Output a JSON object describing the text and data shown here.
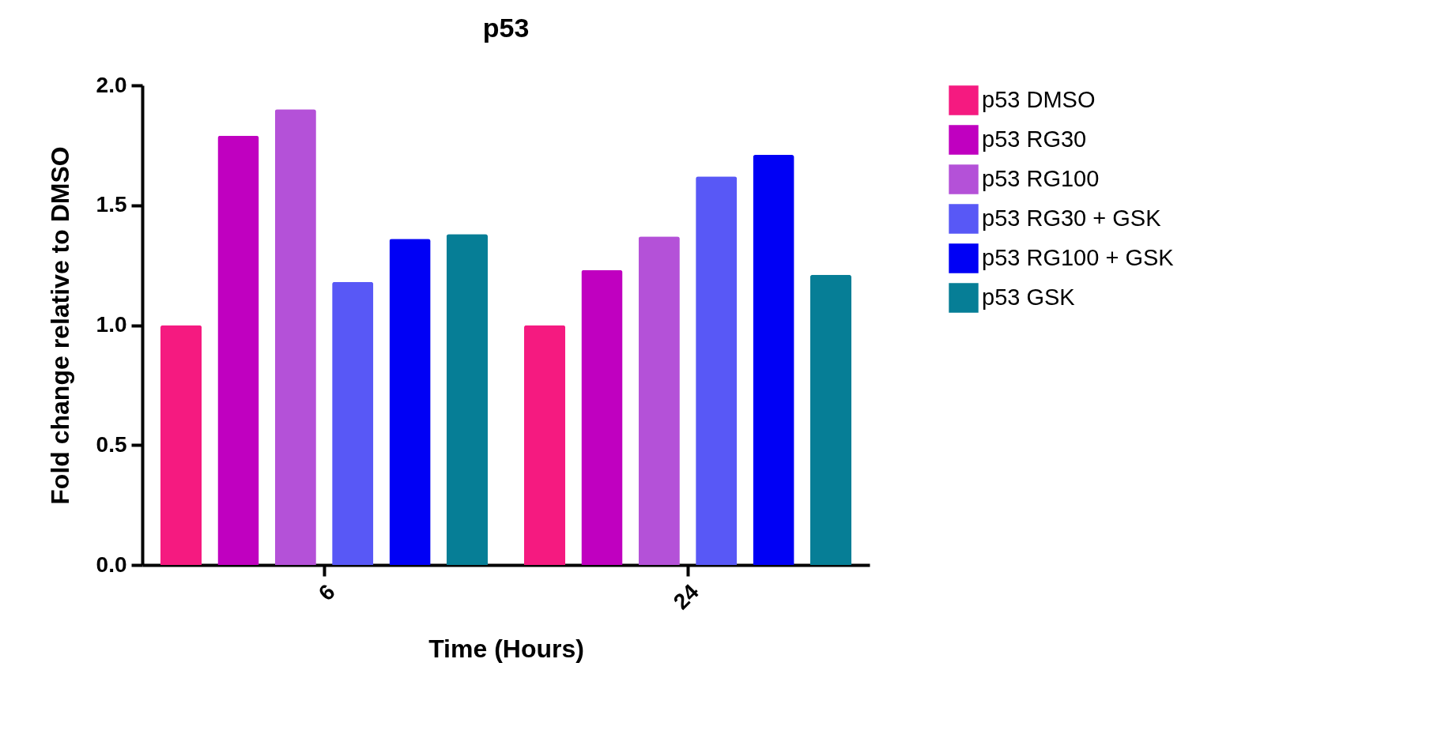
{
  "chart_data": {
    "type": "bar",
    "title": "p53",
    "xlabel": "Time (Hours)",
    "ylabel": "Fold change relative to DMSO",
    "categories": [
      "6",
      "24"
    ],
    "series": [
      {
        "name": "p53 DMSO",
        "color": "#f51a80",
        "values": [
          1.0,
          1.0
        ]
      },
      {
        "name": "p53 RG30",
        "color": "#c000c0",
        "values": [
          1.79,
          1.23
        ]
      },
      {
        "name": "p53 RG100",
        "color": "#b451d8",
        "values": [
          1.9,
          1.37
        ]
      },
      {
        "name": "p53 RG30 + GSK",
        "color": "#5858f6",
        "values": [
          1.18,
          1.62
        ]
      },
      {
        "name": "p53 RG100 + GSK",
        "color": "#0000f5",
        "values": [
          1.36,
          1.71
        ]
      },
      {
        "name": "p53 GSK",
        "color": "#067e96",
        "values": [
          1.38,
          1.21
        ]
      }
    ],
    "ylim": [
      0,
      2
    ],
    "yticks": [
      {
        "value": 0,
        "label": "0.0"
      },
      {
        "value": 0.5,
        "label": "0.5"
      },
      {
        "value": 1,
        "label": "1.0"
      },
      {
        "value": 1.5,
        "label": "1.5"
      },
      {
        "value": 2,
        "label": "2.0"
      }
    ],
    "grid": false,
    "legend": "right"
  }
}
